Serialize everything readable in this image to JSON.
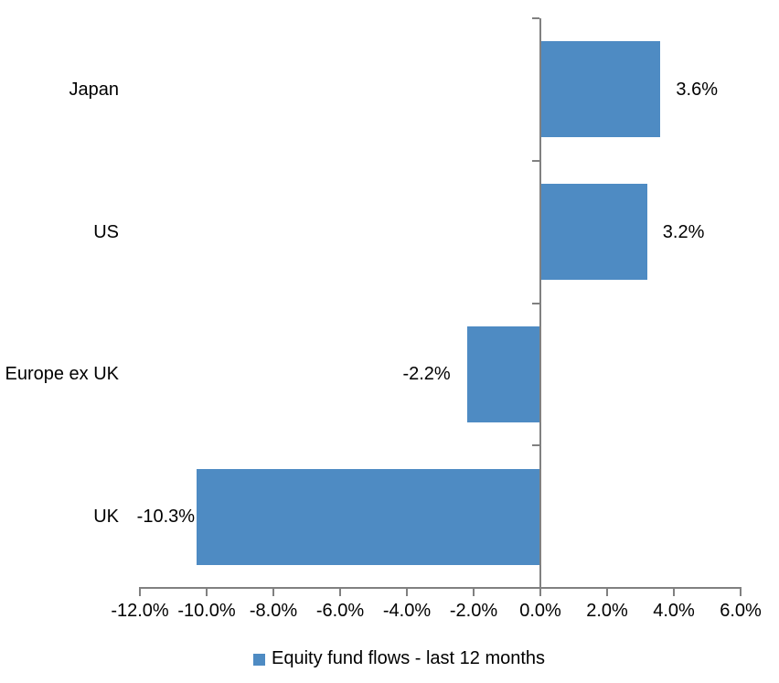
{
  "chart_data": {
    "type": "bar",
    "orientation": "horizontal",
    "title": "",
    "categories": [
      "Japan",
      "US",
      "Europe ex UK",
      "UK"
    ],
    "values": [
      3.6,
      3.2,
      -2.2,
      -10.3
    ],
    "value_labels": [
      "3.6%",
      "3.2%",
      "-2.2%",
      "-10.3%"
    ],
    "xlim": [
      -12,
      6
    ],
    "x_ticks": [
      -12,
      -10,
      -8,
      -6,
      -4,
      -2,
      0,
      2,
      4,
      6
    ],
    "x_tick_labels": [
      "-12.0%",
      "-10.0%",
      "-8.0%",
      "-6.0%",
      "-4.0%",
      "-2.0%",
      "0.0%",
      "2.0%",
      "4.0%",
      "6.0%"
    ],
    "grid": false,
    "legend": "Equity fund flows - last 12 months",
    "legend_position": "bottom",
    "colors": {
      "bar": "#4E8BC3",
      "axis": "#808080",
      "text": "#000000",
      "background": "#FFFFFF"
    }
  }
}
